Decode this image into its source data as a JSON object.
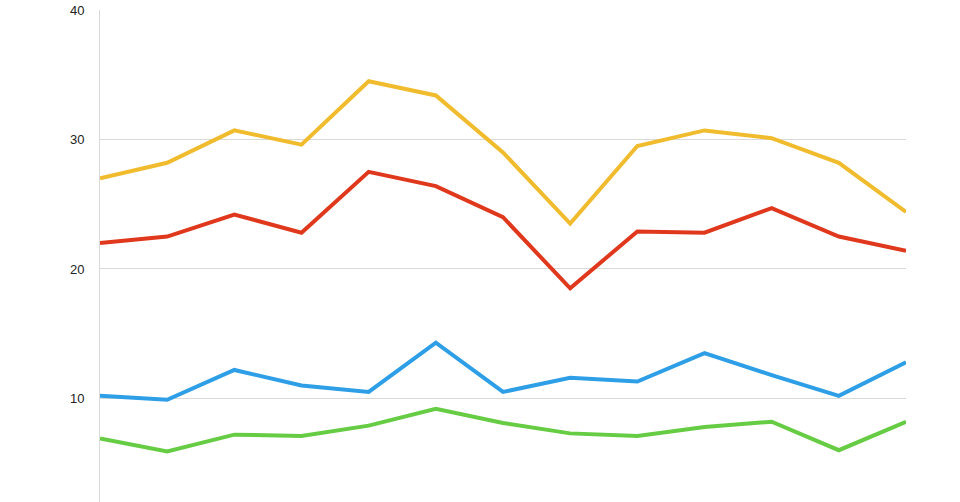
{
  "chart_data": {
    "type": "line",
    "categories": [
      null,
      null,
      null,
      null,
      null,
      null,
      null,
      null,
      null,
      null,
      null,
      null,
      null
    ],
    "series": [
      {
        "color": "#f0bc2e",
        "values": [
          27.0,
          28.2,
          30.7,
          29.6,
          34.5,
          33.4,
          29.0,
          23.5,
          29.5,
          30.7,
          30.1,
          28.2,
          24.4
        ]
      },
      {
        "color": "#e0381c",
        "values": [
          22.0,
          22.5,
          24.2,
          22.8,
          27.5,
          26.4,
          24.0,
          18.5,
          22.9,
          22.8,
          24.7,
          22.5,
          21.4
        ]
      },
      {
        "color": "#2e9fe6",
        "values": [
          10.2,
          9.9,
          12.2,
          11.0,
          10.5,
          14.3,
          10.5,
          11.6,
          11.3,
          13.5,
          11.8,
          10.2,
          12.8
        ]
      },
      {
        "color": "#66cc44",
        "values": [
          6.9,
          5.9,
          7.2,
          7.1,
          7.9,
          9.2,
          8.1,
          7.3,
          7.1,
          7.8,
          8.2,
          6.0,
          8.2
        ]
      }
    ],
    "ylim": [
      2,
      40
    ],
    "yticks": [
      10,
      20,
      30,
      40
    ],
    "grid": true,
    "tick_labels": "y"
  }
}
